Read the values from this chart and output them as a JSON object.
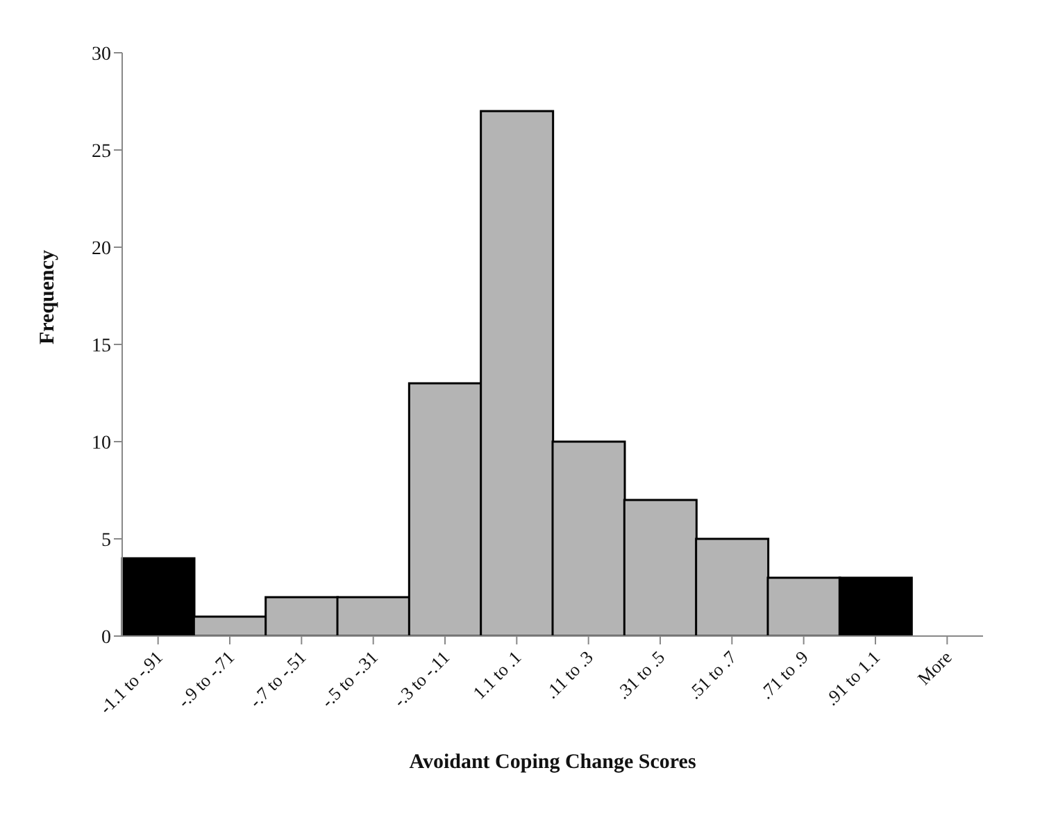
{
  "chart_data": {
    "type": "bar",
    "xlabel": "Avoidant Coping Change Scores",
    "ylabel": "Frequency",
    "categories": [
      "-1.1 to -.91",
      "-.9 to -.71",
      "-.7 to -.51",
      "-.5 to -.31",
      "-.3 to -.11",
      "1.1 to .1",
      ".11 to .3",
      ".31 to .5",
      ".51 to .7",
      ".71 to .9",
      ".91 to 1.1",
      "More"
    ],
    "values": [
      4,
      1,
      2,
      2,
      13,
      27,
      10,
      7,
      5,
      3,
      3,
      0
    ],
    "colors": [
      "#000000",
      "#b4b4b4",
      "#b4b4b4",
      "#b4b4b4",
      "#b4b4b4",
      "#b4b4b4",
      "#b4b4b4",
      "#b4b4b4",
      "#b4b4b4",
      "#b4b4b4",
      "#000000",
      "#b4b4b4"
    ],
    "ylim": [
      0,
      30
    ],
    "yticks": [
      0,
      5,
      10,
      15,
      20,
      25,
      30
    ],
    "grid": false,
    "legend": false
  }
}
